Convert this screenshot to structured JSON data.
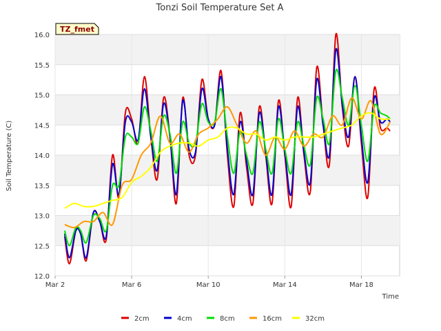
{
  "chart_data": {
    "type": "line",
    "title": "Tonzi Soil Temperature Set A",
    "xlabel": "Time",
    "ylabel": "Soil Temperature (C)",
    "tag": "TZ_fmet",
    "ylim": [
      12.0,
      16.0
    ],
    "xlim": [
      "2023-03-02",
      "2023-03-20"
    ],
    "x_ticks": [
      {
        "day": 2,
        "label": "Mar 2"
      },
      {
        "day": 6,
        "label": "Mar 6"
      },
      {
        "day": 10,
        "label": "Mar 10"
      },
      {
        "day": 14,
        "label": "Mar 14"
      },
      {
        "day": 18,
        "label": "Mar 18"
      }
    ],
    "y_ticks": [
      {
        "value": 12.0,
        "label": "12.0"
      },
      {
        "value": 12.5,
        "label": "12.5"
      },
      {
        "value": 13.0,
        "label": "13.0"
      },
      {
        "value": 13.5,
        "label": "13.5"
      },
      {
        "value": 14.0,
        "label": "14.0"
      },
      {
        "value": 14.5,
        "label": "14.5"
      },
      {
        "value": 15.0,
        "label": "15.0"
      },
      {
        "value": 15.5,
        "label": "15.5"
      },
      {
        "value": 16.0,
        "label": "16.0"
      }
    ],
    "grid": true,
    "legend_position": "bottom",
    "series": [
      {
        "name": "2cm",
        "color": "#dd0000",
        "x": [
          "2023-03-02T12:00",
          "2023-03-02T18:00",
          "2023-03-03T02:00",
          "2023-03-03T08:00",
          "2023-03-03T15:00",
          "2023-03-04T00:00",
          "2023-03-04T08:00",
          "2023-03-04T16:00",
          "2023-03-05T00:00",
          "2023-03-05T08:00",
          "2023-03-05T16:00",
          "2023-03-06T00:00",
          "2023-03-06T08:00",
          "2023-03-06T16:00",
          "2023-03-07T00:00",
          "2023-03-07T08:00",
          "2023-03-07T16:00",
          "2023-03-08T00:00",
          "2023-03-08T08:00",
          "2023-03-08T16:00",
          "2023-03-09T00:00",
          "2023-03-09T08:00",
          "2023-03-09T16:00",
          "2023-03-10T00:00",
          "2023-03-10T08:00",
          "2023-03-10T16:00",
          "2023-03-11T00:00",
          "2023-03-11T08:00",
          "2023-03-11T16:00",
          "2023-03-12T00:00",
          "2023-03-12T08:00",
          "2023-03-12T16:00",
          "2023-03-13T00:00",
          "2023-03-13T08:00",
          "2023-03-13T16:00",
          "2023-03-14T00:00",
          "2023-03-14T08:00",
          "2023-03-14T16:00",
          "2023-03-15T00:00",
          "2023-03-15T08:00",
          "2023-03-15T16:00",
          "2023-03-16T00:00",
          "2023-03-16T08:00",
          "2023-03-16T16:00",
          "2023-03-17T00:00",
          "2023-03-17T08:00",
          "2023-03-17T16:00",
          "2023-03-18T00:00",
          "2023-03-18T08:00",
          "2023-03-18T16:00",
          "2023-03-19T00:00",
          "2023-03-19T08:00",
          "2023-03-19T12:00"
        ],
        "values": [
          12.65,
          12.2,
          12.75,
          12.7,
          12.25,
          13.05,
          12.9,
          12.6,
          14.0,
          13.3,
          14.7,
          14.6,
          14.2,
          15.3,
          14.3,
          13.6,
          14.95,
          14.3,
          13.2,
          14.95,
          14.0,
          14.0,
          15.25,
          14.6,
          14.5,
          15.4,
          14.0,
          13.15,
          14.7,
          13.8,
          13.2,
          14.8,
          14.0,
          13.2,
          14.9,
          14.0,
          13.15,
          14.95,
          14.0,
          13.4,
          15.45,
          14.5,
          13.85,
          16.0,
          14.8,
          14.15,
          15.3,
          14.2,
          13.3,
          15.1,
          14.45,
          14.45,
          14.4
        ]
      },
      {
        "name": "4cm",
        "color": "#0000cc",
        "x": [
          "2023-03-02T12:00",
          "2023-03-02T18:00",
          "2023-03-03T02:00",
          "2023-03-03T08:00",
          "2023-03-03T15:00",
          "2023-03-04T00:00",
          "2023-03-04T08:00",
          "2023-03-04T16:00",
          "2023-03-05T00:00",
          "2023-03-05T08:00",
          "2023-03-05T16:00",
          "2023-03-06T00:00",
          "2023-03-06T08:00",
          "2023-03-06T16:00",
          "2023-03-07T00:00",
          "2023-03-07T08:00",
          "2023-03-07T16:00",
          "2023-03-08T00:00",
          "2023-03-08T08:00",
          "2023-03-08T16:00",
          "2023-03-09T00:00",
          "2023-03-09T08:00",
          "2023-03-09T16:00",
          "2023-03-10T00:00",
          "2023-03-10T08:00",
          "2023-03-10T16:00",
          "2023-03-11T00:00",
          "2023-03-11T08:00",
          "2023-03-11T16:00",
          "2023-03-12T00:00",
          "2023-03-12T08:00",
          "2023-03-12T16:00",
          "2023-03-13T00:00",
          "2023-03-13T08:00",
          "2023-03-13T16:00",
          "2023-03-14T00:00",
          "2023-03-14T08:00",
          "2023-03-14T16:00",
          "2023-03-15T00:00",
          "2023-03-15T08:00",
          "2023-03-15T16:00",
          "2023-03-16T00:00",
          "2023-03-16T08:00",
          "2023-03-16T16:00",
          "2023-03-17T00:00",
          "2023-03-17T08:00",
          "2023-03-17T16:00",
          "2023-03-18T00:00",
          "2023-03-18T08:00",
          "2023-03-18T16:00",
          "2023-03-19T00:00",
          "2023-03-19T08:00",
          "2023-03-19T12:00"
        ],
        "values": [
          12.7,
          12.3,
          12.75,
          12.7,
          12.3,
          13.05,
          12.9,
          12.65,
          13.85,
          13.35,
          14.55,
          14.55,
          14.25,
          15.1,
          14.3,
          13.75,
          14.85,
          14.3,
          13.35,
          14.9,
          14.1,
          14.05,
          15.1,
          14.6,
          14.5,
          15.3,
          14.1,
          13.35,
          14.55,
          13.9,
          13.35,
          14.7,
          14.05,
          13.35,
          14.8,
          14.05,
          13.35,
          14.8,
          14.05,
          13.55,
          15.25,
          14.5,
          14.0,
          15.75,
          14.85,
          14.3,
          15.3,
          14.3,
          13.55,
          14.95,
          14.55,
          14.6,
          14.55
        ]
      },
      {
        "name": "8cm",
        "color": "#00dd00",
        "x": [
          "2023-03-02T12:00",
          "2023-03-02T18:00",
          "2023-03-03T02:00",
          "2023-03-03T08:00",
          "2023-03-03T15:00",
          "2023-03-04T00:00",
          "2023-03-04T08:00",
          "2023-03-04T16:00",
          "2023-03-05T00:00",
          "2023-03-05T08:00",
          "2023-03-05T16:00",
          "2023-03-06T00:00",
          "2023-03-06T08:00",
          "2023-03-06T16:00",
          "2023-03-07T00:00",
          "2023-03-07T08:00",
          "2023-03-07T16:00",
          "2023-03-08T00:00",
          "2023-03-08T08:00",
          "2023-03-08T16:00",
          "2023-03-09T00:00",
          "2023-03-09T08:00",
          "2023-03-09T16:00",
          "2023-03-10T00:00",
          "2023-03-10T08:00",
          "2023-03-10T16:00",
          "2023-03-11T00:00",
          "2023-03-11T08:00",
          "2023-03-11T16:00",
          "2023-03-12T00:00",
          "2023-03-12T08:00",
          "2023-03-12T16:00",
          "2023-03-13T00:00",
          "2023-03-13T08:00",
          "2023-03-13T16:00",
          "2023-03-14T00:00",
          "2023-03-14T08:00",
          "2023-03-14T16:00",
          "2023-03-15T00:00",
          "2023-03-15T08:00",
          "2023-03-15T16:00",
          "2023-03-16T00:00",
          "2023-03-16T08:00",
          "2023-03-16T16:00",
          "2023-03-17T00:00",
          "2023-03-17T08:00",
          "2023-03-17T16:00",
          "2023-03-18T00:00",
          "2023-03-18T08:00",
          "2023-03-18T16:00",
          "2023-03-19T00:00",
          "2023-03-19T08:00",
          "2023-03-19T12:00"
        ],
        "values": [
          12.75,
          12.5,
          12.8,
          12.75,
          12.55,
          13.0,
          12.95,
          12.75,
          13.5,
          13.5,
          14.3,
          14.3,
          14.2,
          14.8,
          14.4,
          13.9,
          14.65,
          14.35,
          13.7,
          14.55,
          14.2,
          14.2,
          14.85,
          14.55,
          14.55,
          15.1,
          14.3,
          13.7,
          14.4,
          14.0,
          13.7,
          14.55,
          14.1,
          13.7,
          14.6,
          14.1,
          13.7,
          14.55,
          14.15,
          13.85,
          14.95,
          14.6,
          14.2,
          15.4,
          14.95,
          14.5,
          15.15,
          14.5,
          13.9,
          14.8,
          14.7,
          14.65,
          14.6
        ]
      },
      {
        "name": "16cm",
        "color": "#ff9900",
        "x": [
          "2023-03-02T12:00",
          "2023-03-03T00:00",
          "2023-03-03T12:00",
          "2023-03-04T00:00",
          "2023-03-04T12:00",
          "2023-03-05T00:00",
          "2023-03-05T12:00",
          "2023-03-06T00:00",
          "2023-03-06T12:00",
          "2023-03-07T00:00",
          "2023-03-07T12:00",
          "2023-03-08T00:00",
          "2023-03-08T12:00",
          "2023-03-09T00:00",
          "2023-03-09T12:00",
          "2023-03-10T00:00",
          "2023-03-10T12:00",
          "2023-03-11T00:00",
          "2023-03-11T12:00",
          "2023-03-12T00:00",
          "2023-03-12T12:00",
          "2023-03-13T00:00",
          "2023-03-13T12:00",
          "2023-03-14T00:00",
          "2023-03-14T12:00",
          "2023-03-15T00:00",
          "2023-03-15T12:00",
          "2023-03-16T00:00",
          "2023-03-16T12:00",
          "2023-03-17T00:00",
          "2023-03-17T12:00",
          "2023-03-18T00:00",
          "2023-03-18T12:00",
          "2023-03-19T00:00",
          "2023-03-19T12:00"
        ],
        "values": [
          12.85,
          12.8,
          12.9,
          12.9,
          13.05,
          12.85,
          13.5,
          13.6,
          14.0,
          14.2,
          14.65,
          14.2,
          14.35,
          14.05,
          14.35,
          14.45,
          14.6,
          14.8,
          14.5,
          14.2,
          14.4,
          14.0,
          14.3,
          14.1,
          14.4,
          14.15,
          14.35,
          14.3,
          14.65,
          14.5,
          14.95,
          14.6,
          14.9,
          14.35,
          14.55
        ]
      },
      {
        "name": "32cm",
        "color": "#ffff00",
        "x": [
          "2023-03-02T12:00",
          "2023-03-03T00:00",
          "2023-03-03T12:00",
          "2023-03-04T00:00",
          "2023-03-04T12:00",
          "2023-03-05T00:00",
          "2023-03-05T12:00",
          "2023-03-06T00:00",
          "2023-03-06T12:00",
          "2023-03-07T00:00",
          "2023-03-07T12:00",
          "2023-03-08T00:00",
          "2023-03-08T12:00",
          "2023-03-09T00:00",
          "2023-03-09T12:00",
          "2023-03-10T00:00",
          "2023-03-10T12:00",
          "2023-03-11T00:00",
          "2023-03-11T12:00",
          "2023-03-12T00:00",
          "2023-03-12T12:00",
          "2023-03-13T00:00",
          "2023-03-13T12:00",
          "2023-03-14T00:00",
          "2023-03-14T12:00",
          "2023-03-15T00:00",
          "2023-03-15T12:00",
          "2023-03-16T00:00",
          "2023-03-16T12:00",
          "2023-03-17T00:00",
          "2023-03-17T12:00",
          "2023-03-18T00:00",
          "2023-03-18T12:00",
          "2023-03-19T00:00",
          "2023-03-19T12:00"
        ],
        "values": [
          13.12,
          13.2,
          13.15,
          13.15,
          13.2,
          13.25,
          13.3,
          13.55,
          13.65,
          13.8,
          14.05,
          14.15,
          14.2,
          14.2,
          14.15,
          14.25,
          14.3,
          14.45,
          14.45,
          14.35,
          14.35,
          14.25,
          14.3,
          14.25,
          14.3,
          14.3,
          14.3,
          14.35,
          14.4,
          14.45,
          14.5,
          14.65,
          14.7,
          14.6,
          14.6
        ]
      }
    ]
  }
}
